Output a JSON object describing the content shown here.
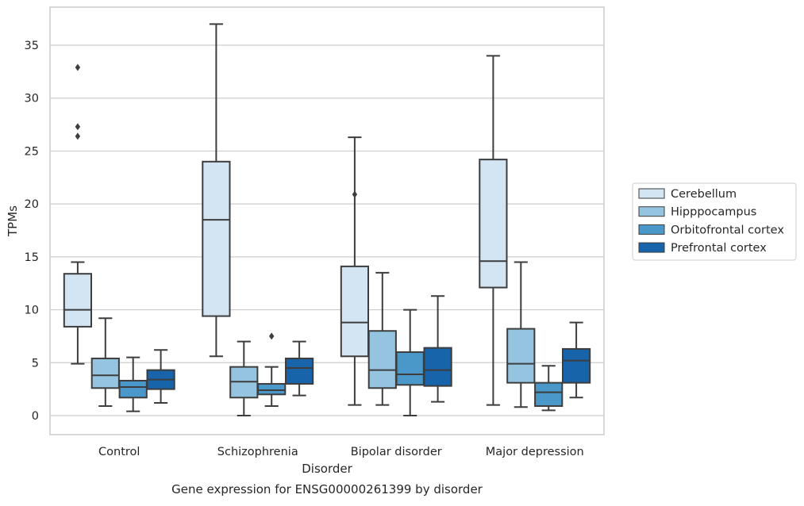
{
  "chart_data": {
    "type": "box",
    "title": "",
    "caption": "Gene expression for ENSG00000261399 by disorder",
    "xlabel": "Disorder",
    "ylabel": "TPMs",
    "ylim": [
      -1.8,
      38.6
    ],
    "yticks": [
      0,
      5,
      10,
      15,
      20,
      25,
      30,
      35
    ],
    "grid": "horizontal",
    "legend_position": "right",
    "categories": [
      "Control",
      "Schizophrenia",
      "Bipolar disorder",
      "Major depression"
    ],
    "series": [
      {
        "name": "Cerebellum",
        "color": "#d3e4f3",
        "boxes": [
          {
            "whislo": 4.9,
            "q1": 8.4,
            "med": 10.0,
            "q3": 13.4,
            "whishi": 14.5,
            "fliers": [
              26.4,
              27.3,
              32.9
            ]
          },
          {
            "whislo": 5.6,
            "q1": 9.4,
            "med": 18.5,
            "q3": 24.0,
            "whishi": 37.0,
            "fliers": []
          },
          {
            "whislo": 1.0,
            "q1": 5.6,
            "med": 8.8,
            "q3": 14.1,
            "whishi": 26.3,
            "fliers": [
              20.9
            ]
          },
          {
            "whislo": 1.0,
            "q1": 12.1,
            "med": 14.6,
            "q3": 24.2,
            "whishi": 34.0,
            "fliers": []
          }
        ]
      },
      {
        "name": "Hipppocampus",
        "color": "#94c4df",
        "boxes": [
          {
            "whislo": 0.9,
            "q1": 2.6,
            "med": 3.8,
            "q3": 5.4,
            "whishi": 9.2,
            "fliers": []
          },
          {
            "whislo": 0.0,
            "q1": 1.7,
            "med": 3.2,
            "q3": 4.6,
            "whishi": 7.0,
            "fliers": []
          },
          {
            "whislo": 1.0,
            "q1": 2.6,
            "med": 4.3,
            "q3": 8.0,
            "whishi": 13.5,
            "fliers": []
          },
          {
            "whislo": 0.8,
            "q1": 3.1,
            "med": 4.9,
            "q3": 8.2,
            "whishi": 14.5,
            "fliers": []
          }
        ]
      },
      {
        "name": "Orbitofrontal cortex",
        "color": "#4a98c9",
        "boxes": [
          {
            "whislo": 0.4,
            "q1": 1.7,
            "med": 2.7,
            "q3": 3.3,
            "whishi": 5.5,
            "fliers": []
          },
          {
            "whislo": 0.9,
            "q1": 2.0,
            "med": 2.4,
            "q3": 3.0,
            "whishi": 4.6,
            "fliers": [
              7.5
            ]
          },
          {
            "whislo": 0.0,
            "q1": 2.9,
            "med": 3.9,
            "q3": 6.0,
            "whishi": 10.0,
            "fliers": []
          },
          {
            "whislo": 0.5,
            "q1": 0.9,
            "med": 2.2,
            "q3": 3.1,
            "whishi": 4.7,
            "fliers": []
          }
        ]
      },
      {
        "name": "Prefrontal cortex",
        "color": "#1764ab",
        "boxes": [
          {
            "whislo": 1.2,
            "q1": 2.5,
            "med": 3.4,
            "q3": 4.3,
            "whishi": 6.2,
            "fliers": []
          },
          {
            "whislo": 1.9,
            "q1": 3.0,
            "med": 4.5,
            "q3": 5.4,
            "whishi": 7.0,
            "fliers": []
          },
          {
            "whislo": 1.3,
            "q1": 2.8,
            "med": 4.3,
            "q3": 6.4,
            "whishi": 11.3,
            "fliers": []
          },
          {
            "whislo": 1.7,
            "q1": 3.1,
            "med": 5.2,
            "q3": 6.3,
            "whishi": 8.8,
            "fliers": []
          }
        ]
      }
    ]
  }
}
